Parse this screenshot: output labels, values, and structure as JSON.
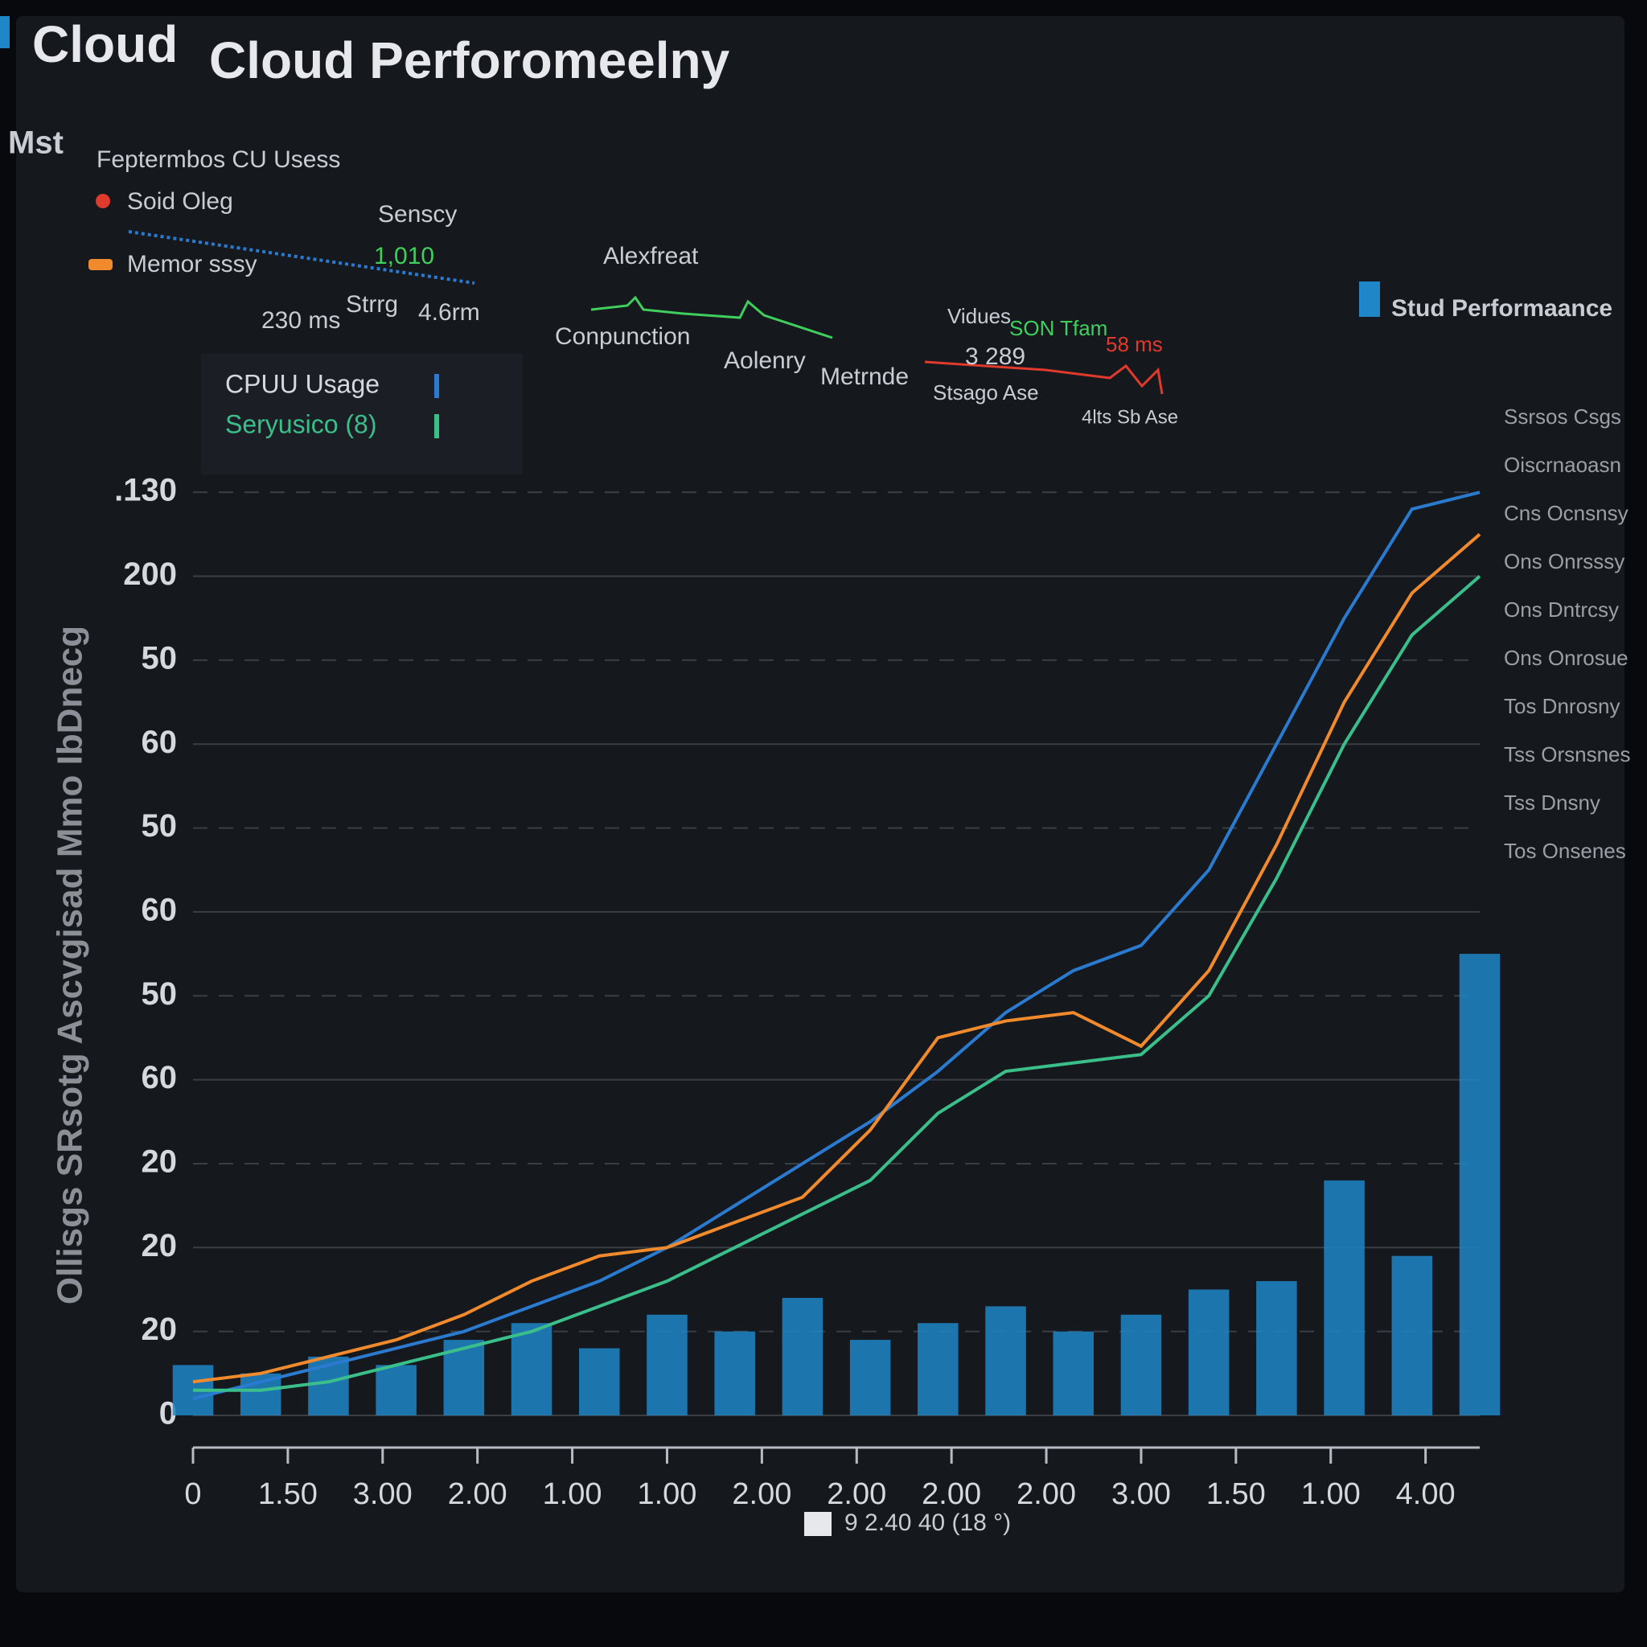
{
  "header": {
    "corner": "Mst",
    "title_short": "Cloud",
    "title": "Cloud Perforomeelny"
  },
  "legend_panel": {
    "heading": "Feptermbos CU Usess",
    "items": [
      "Soid Oleg",
      "Memor sssy"
    ],
    "stats": [
      {
        "label": "Senscy",
        "value": "1,010"
      },
      {
        "label": "Strrg",
        "value": "4.6rm"
      }
    ],
    "latency": "230 ms"
  },
  "metrics": {
    "labels": [
      "Alexfreat",
      "Conpunction",
      "Aolenry",
      "Metrnde"
    ],
    "right": {
      "label": "Vidues",
      "tag": "SON Tfam",
      "badge": "58 ms",
      "value": "3 289",
      "footer": "Stsago Ase",
      "note": "4lts Sb Ase"
    }
  },
  "sidebar": {
    "title": "Stud Performaance",
    "items": [
      "Ssrsos Csgs",
      "Oiscrnaoasn",
      "Cns Ocnsnsy",
      "Ons Onrsssy",
      "Ons Dntrcsy",
      "Ons Onrosue",
      "Tos Dnrosny",
      "Tss Orsnsnes",
      "Tss Dnsny",
      "Tos Onsenes"
    ]
  },
  "chart_data": {
    "type": "line",
    "y_label": "Ollisgs SRsotg Ascvgisad Mmo IbDnecg",
    "x": [
      0,
      1,
      2,
      3,
      4,
      5,
      6,
      7,
      8,
      9,
      10,
      11,
      12,
      13,
      14,
      15,
      16,
      17,
      18,
      19
    ],
    "xlim": [
      0,
      19
    ],
    "xticks": [
      0,
      {
        "value": 1.4,
        "label": "1.50"
      },
      {
        "value": 2.8,
        "label": "3.00"
      },
      {
        "value": 4.2,
        "label": "2.00"
      },
      {
        "value": 5.6,
        "label": "1.00"
      },
      {
        "value": 7,
        "label": "1.00"
      },
      {
        "value": 8.4,
        "label": "2.00"
      },
      {
        "value": 9.8,
        "label": "2.00"
      },
      {
        "value": 11.2,
        "label": "2.00"
      },
      {
        "value": 12.6,
        "label": "2.00"
      },
      {
        "value": 14,
        "label": "3.00"
      },
      {
        "value": 15.4,
        "label": "1.50"
      },
      {
        "value": 16.8,
        "label": "1.00"
      },
      {
        "value": 18.2,
        "label": "4.00"
      }
    ],
    "ylim": [
      0,
      11.5
    ],
    "yticks": [
      0,
      {
        "value": 1,
        "label": "20"
      },
      {
        "value": 2,
        "label": "20"
      },
      {
        "value": 3,
        "label": "20"
      },
      {
        "value": 4,
        "label": "60"
      },
      {
        "value": 5,
        "label": "50"
      },
      {
        "value": 6,
        "label": "60"
      },
      {
        "value": 7,
        "label": "50"
      },
      {
        "value": 8,
        "label": "60"
      },
      {
        "value": 9,
        "label": "50"
      },
      {
        "value": 10,
        "label": "200"
      },
      {
        "value": 11,
        "label": ".130"
      }
    ],
    "grid": true,
    "series": [
      {
        "type": "bar",
        "color": "#1f86c8",
        "values": [
          0.6,
          0.5,
          0.7,
          0.6,
          0.9,
          1.1,
          0.8,
          1.2,
          1.0,
          1.4,
          0.9,
          1.1,
          1.3,
          1.0,
          1.2,
          1.5,
          1.6,
          2.8,
          1.9,
          5.5
        ]
      },
      {
        "name": "CPUU Usage",
        "color": "#2a7bd0",
        "values": [
          0.2,
          0.4,
          0.6,
          0.8,
          1.0,
          1.3,
          1.6,
          2.0,
          2.5,
          3.0,
          3.5,
          4.1,
          4.8,
          5.3,
          5.6,
          6.5,
          8.0,
          9.5,
          10.8,
          11.0
        ]
      },
      {
        "color": "#f08a2c",
        "values": [
          0.4,
          0.5,
          0.7,
          0.9,
          1.2,
          1.6,
          1.9,
          2.0,
          2.3,
          2.6,
          3.4,
          4.5,
          4.7,
          4.8,
          4.4,
          5.3,
          6.8,
          8.5,
          9.8,
          10.5
        ]
      },
      {
        "name": "Seryusico (8)",
        "color": "#3bbf8a",
        "values": [
          0.3,
          0.3,
          0.4,
          0.6,
          0.8,
          1.0,
          1.3,
          1.6,
          2.0,
          2.4,
          2.8,
          3.6,
          4.1,
          4.2,
          4.3,
          5.0,
          6.4,
          8.0,
          9.3,
          10.0
        ]
      }
    ]
  },
  "footer": "9 2.40 40 (18 °)"
}
